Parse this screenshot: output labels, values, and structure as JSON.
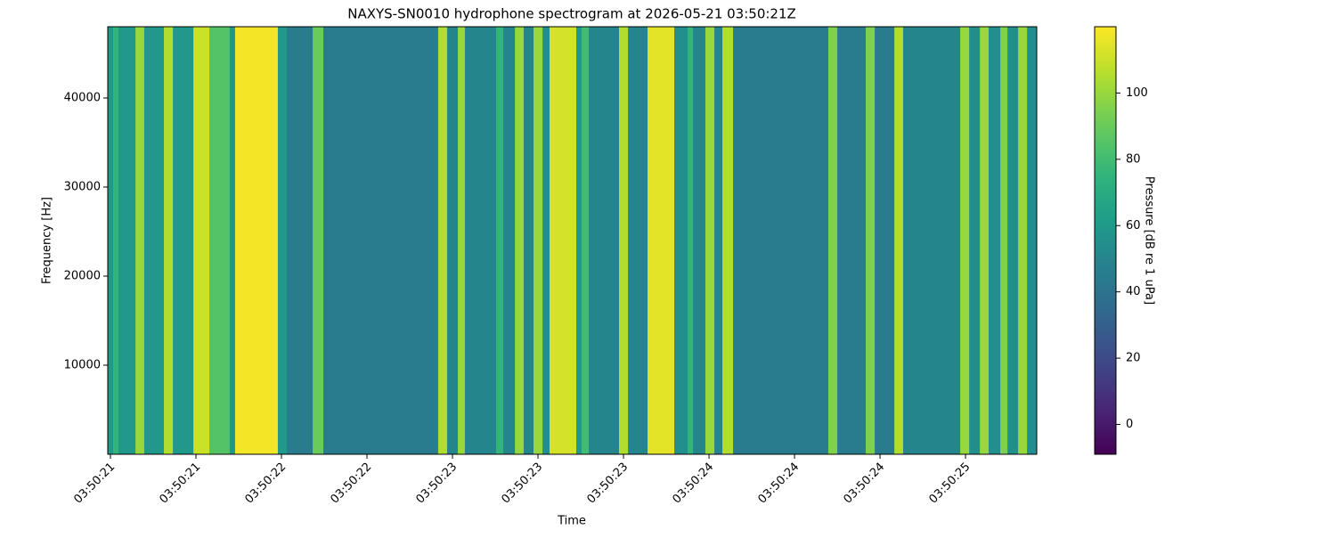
{
  "chart_data": {
    "type": "heatmap",
    "title": "NAXYS-SN0010 hydrophone spectrogram at 2026-05-21 03:50:21Z",
    "xlabel": "Time",
    "ylabel": "Frequency [Hz]",
    "x": [
      -0.0125,
      0.0125,
      0.0375,
      0.117,
      0.158,
      0.25,
      0.292,
      0.388,
      0.4625,
      0.558,
      0.583,
      0.783,
      0.825,
      0.946,
      0.996,
      1.533,
      1.575,
      1.625,
      1.658,
      1.804,
      1.8375,
      1.892,
      1.933,
      1.979,
      2.021,
      2.054,
      2.179,
      2.204,
      2.2375,
      2.379,
      2.421,
      2.5125,
      2.6375,
      2.7,
      2.725,
      2.783,
      2.825,
      2.8625,
      2.9125,
      3.358,
      3.4,
      3.533,
      3.575,
      3.667,
      3.708,
      3.975,
      4.017,
      4.067,
      4.108,
      4.1625,
      4.196,
      4.246,
      4.2875
    ],
    "values": [
      60,
      75,
      60,
      100,
      60,
      105,
      60,
      110,
      85,
      60,
      118,
      60,
      45,
      90,
      45,
      105,
      50,
      100,
      50,
      75,
      50,
      100,
      50,
      100,
      55,
      112,
      60,
      80,
      50,
      105,
      50,
      115,
      55,
      75,
      50,
      100,
      50,
      105,
      45,
      95,
      45,
      95,
      45,
      105,
      50,
      100,
      55,
      100,
      55,
      95,
      55,
      100,
      55
    ],
    "xlim": [
      -0.0125,
      4.333
    ],
    "xticks": [
      {
        "value": 0,
        "label": "03:50:21"
      },
      {
        "value": 0.4,
        "label": "03:50:21"
      },
      {
        "value": 0.8,
        "label": "03:50:22"
      },
      {
        "value": 1.2,
        "label": "03:50:22"
      },
      {
        "value": 1.6,
        "label": "03:50:23"
      },
      {
        "value": 2.0,
        "label": "03:50:23"
      },
      {
        "value": 2.4,
        "label": "03:50:23"
      },
      {
        "value": 2.8,
        "label": "03:50:24"
      },
      {
        "value": 3.2,
        "label": "03:50:24"
      },
      {
        "value": 3.6,
        "label": "03:50:24"
      },
      {
        "value": 4.0,
        "label": "03:50:25"
      }
    ],
    "ylim": [
      0,
      48000
    ],
    "yticks": [
      10000,
      20000,
      30000,
      40000
    ],
    "colorbar": {
      "label": "Pressure [dB re 1 uPa]",
      "lim": [
        -9,
        120
      ],
      "ticks": [
        0,
        20,
        40,
        60,
        80,
        100
      ]
    }
  }
}
